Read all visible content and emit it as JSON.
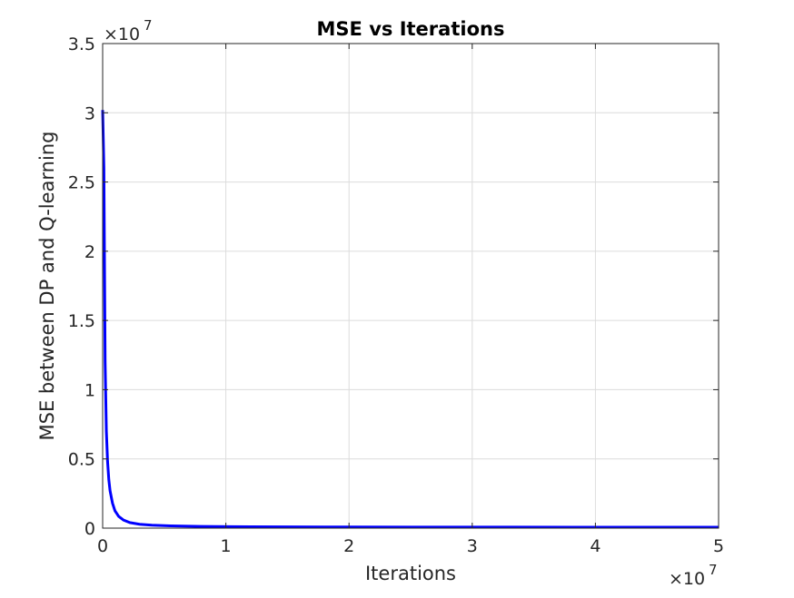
{
  "chart_data": {
    "type": "line",
    "title": "MSE vs Iterations",
    "xlabel": "Iterations",
    "ylabel": "MSE between DP and Q-learning",
    "xlim": [
      0,
      50000000
    ],
    "ylim": [
      0,
      35000000
    ],
    "x_ticks": [
      "0",
      "1",
      "2",
      "3",
      "4",
      "5"
    ],
    "y_ticks": [
      "0",
      "0.5",
      "1",
      "1.5",
      "2",
      "2.5",
      "3",
      "3.5"
    ],
    "x_tick_values": [
      0,
      10000000,
      20000000,
      30000000,
      40000000,
      50000000
    ],
    "y_tick_values": [
      0,
      5000000,
      10000000,
      15000000,
      20000000,
      25000000,
      30000000,
      35000000
    ],
    "x_multiplier": {
      "base": "×10",
      "exp": "7"
    },
    "y_multiplier": {
      "base": "×10",
      "exp": "7"
    },
    "grid": true,
    "series": [
      {
        "color": "#0000ff",
        "x": [
          0,
          100000,
          200000,
          300000,
          400000,
          500000,
          600000,
          800000,
          1000000,
          1300000,
          1700000,
          2200000,
          3000000,
          4000000,
          5500000,
          8000000,
          12000000,
          18000000,
          25000000,
          33000000,
          42000000,
          50000000
        ],
        "y": [
          30200000,
          26000000,
          12000000,
          7000000,
          4800000,
          3500000,
          2700000,
          1800000,
          1250000,
          850000,
          580000,
          400000,
          280000,
          210000,
          160000,
          120000,
          100000,
          85000,
          75000,
          70000,
          65000,
          62000
        ]
      }
    ]
  }
}
